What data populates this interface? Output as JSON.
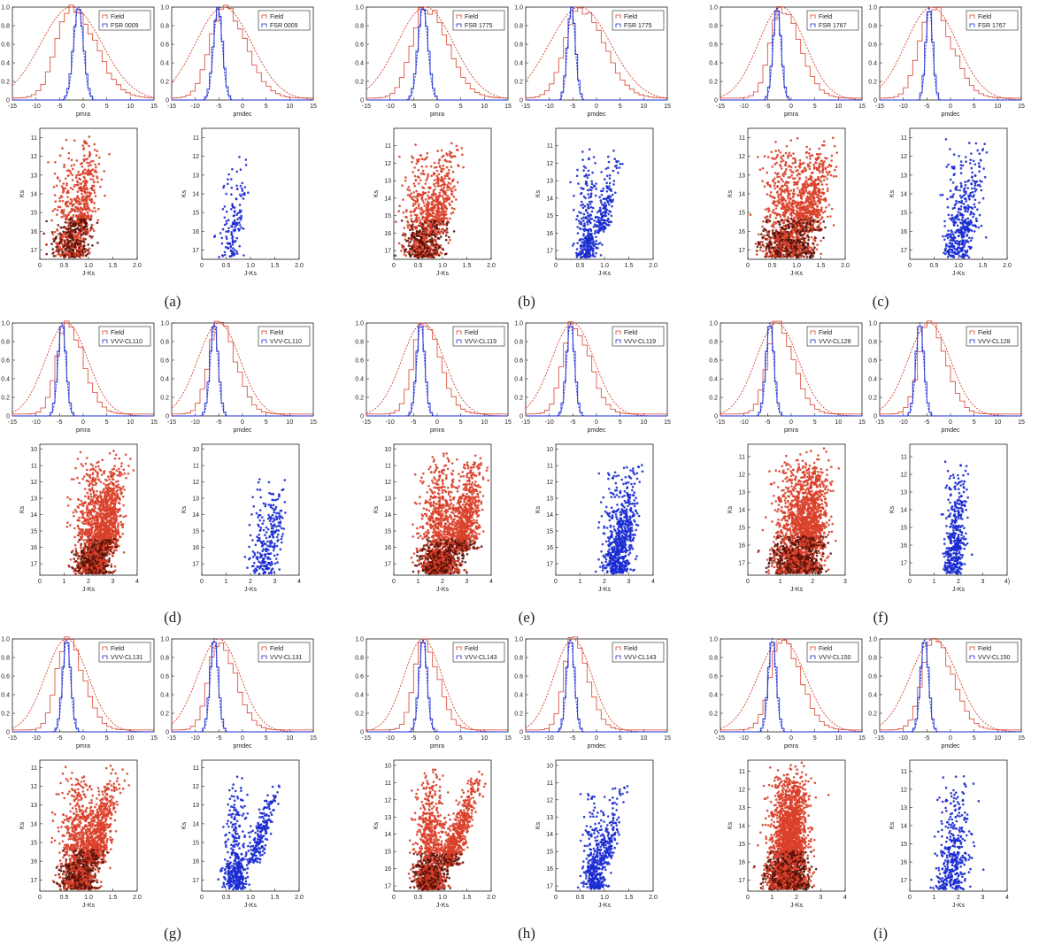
{
  "colors": {
    "field": "#d9402a",
    "cluster": "#1a2bd0",
    "axis": "#222222"
  },
  "chart_data": [
    {
      "label": "(a)",
      "type": "histogram-and-scatter",
      "legend_field": "Field",
      "legend_cluster": "FSR 0009",
      "hist_xlim": [
        -15,
        15
      ],
      "hist_ylim": [
        0,
        1.0
      ],
      "hist_xlabel_ra": "pmra",
      "hist_xlabel_dec": "pmdec",
      "field_ra_center": -2.5,
      "field_ra_sigma": 6.5,
      "field_dec_center": -4.0,
      "field_dec_sigma": 6.0,
      "cluster_ra_center": -1.0,
      "cluster_ra_sigma": 1.0,
      "cluster_dec_center": -5.2,
      "cluster_dec_sigma": 0.9,
      "cmd_xlim": [
        0,
        2.0
      ],
      "cmd_xticks": [
        "0",
        "0.5",
        "1.0",
        "1.5",
        "2.0"
      ],
      "cmd_ylim": [
        17.5,
        10.5
      ],
      "cmd_yticks": [
        "11",
        "12",
        "13",
        "14",
        "15",
        "16",
        "17"
      ],
      "cmd_xlabel": "J-Ks",
      "cmd_ylabel": "Ks",
      "field_cmd": {
        "rgb_color": 0.85,
        "rgb_slope": 0.06,
        "ms_color": 0.65,
        "spread": 0.18,
        "bright": 10.8,
        "n": 900
      },
      "cluster_cmd": {
        "rgb_color": 0.75,
        "rgb_slope": 0.05,
        "ms_color": 0.6,
        "spread": 0.1,
        "bright": 11.0,
        "n": 140
      }
    },
    {
      "label": "(b)",
      "type": "histogram-and-scatter",
      "legend_field": "Field",
      "legend_cluster": "FSR 1775",
      "hist_xlim": [
        -15,
        15
      ],
      "hist_ylim": [
        0,
        1.0
      ],
      "hist_xlabel_ra": "pmra",
      "hist_xlabel_dec": "pmdec",
      "field_ra_center": -2.5,
      "field_ra_sigma": 6.0,
      "field_dec_center": -3.5,
      "field_dec_sigma": 6.5,
      "cluster_ra_center": -3.0,
      "cluster_ra_sigma": 1.0,
      "cluster_dec_center": -5.3,
      "cluster_dec_sigma": 0.8,
      "cmd_xlim": [
        0,
        2.0
      ],
      "cmd_xticks": [
        "0",
        "0.5",
        "1.0",
        "1.5",
        "2.0"
      ],
      "cmd_ylim": [
        17.5,
        10.0
      ],
      "cmd_yticks": [
        "11",
        "12",
        "13",
        "14",
        "15",
        "16",
        "17"
      ],
      "cmd_xlabel": "J-Ks",
      "cmd_ylabel": "Ks",
      "field_cmd": {
        "rgb_color": 0.85,
        "rgb_slope": 0.07,
        "ms_color": 0.6,
        "spread": 0.2,
        "bright": 10.5,
        "n": 1100
      },
      "cluster_cmd": {
        "rgb_color": 0.95,
        "rgb_slope": 0.08,
        "ms_color": 0.65,
        "spread": 0.12,
        "bright": 10.4,
        "n": 450
      }
    },
    {
      "label": "(c)",
      "type": "histogram-and-scatter",
      "legend_field": "Field",
      "legend_cluster": "FSR 1767",
      "hist_xlim": [
        -15,
        15
      ],
      "hist_ylim": [
        0,
        1.0
      ],
      "hist_xlabel_ra": "pmra",
      "hist_xlabel_dec": "pmdec",
      "field_ra_center": -2.0,
      "field_ra_sigma": 5.0,
      "field_dec_center": -4.0,
      "field_dec_sigma": 5.5,
      "cluster_ra_center": -3.0,
      "cluster_ra_sigma": 0.8,
      "cluster_dec_center": -4.5,
      "cluster_dec_sigma": 0.7,
      "cmd_xlim": [
        0,
        2.0
      ],
      "cmd_xticks": [
        "0",
        "0.5",
        "1.0",
        "1.5",
        "2.0"
      ],
      "cmd_ylim": [
        17.5,
        10.5
      ],
      "cmd_yticks": [
        "11",
        "12",
        "13",
        "14",
        "15",
        "16",
        "17"
      ],
      "cmd_xlabel": "J-Ks",
      "cmd_ylabel": "Ks",
      "field_cmd": {
        "rgb_color": 1.2,
        "rgb_slope": 0.08,
        "ms_color": 0.8,
        "spread": 0.25,
        "bright": 10.8,
        "n": 1600
      },
      "cluster_cmd": {
        "rgb_color": 1.2,
        "rgb_slope": 0.06,
        "ms_color": 1.0,
        "spread": 0.15,
        "bright": 10.8,
        "n": 420
      }
    },
    {
      "label": "(d)",
      "type": "histogram-and-scatter",
      "legend_field": "Field",
      "legend_cluster": "VVV-CL110",
      "hist_xlim": [
        -15,
        15
      ],
      "hist_ylim": [
        0,
        1.0
      ],
      "hist_xlabel_ra": "pmra",
      "hist_xlabel_dec": "pmdec",
      "field_ra_center": -3.5,
      "field_ra_sigma": 4.5,
      "field_dec_center": -5.0,
      "field_dec_sigma": 4.5,
      "cluster_ra_center": -4.5,
      "cluster_ra_sigma": 0.8,
      "cluster_dec_center": -6.0,
      "cluster_dec_sigma": 0.8,
      "cmd_xlim": [
        0,
        4
      ],
      "cmd_xticks": [
        "0",
        "1",
        "2",
        "3",
        "4"
      ],
      "cmd_ylim": [
        17.7,
        9.7
      ],
      "cmd_yticks": [
        "10",
        "11",
        "12",
        "13",
        "14",
        "15",
        "16",
        "17"
      ],
      "cmd_xlabel": "J-Ks",
      "cmd_ylabel": "Ks",
      "field_cmd": {
        "rgb_color": 2.7,
        "rgb_slope": 0.1,
        "ms_color": 2.2,
        "spread": 0.35,
        "bright": 10.0,
        "n": 1900
      },
      "cluster_cmd": {
        "rgb_color": 2.9,
        "rgb_slope": 0.08,
        "ms_color": 2.5,
        "spread": 0.3,
        "bright": 10.9,
        "n": 260
      }
    },
    {
      "label": "(e)",
      "type": "histogram-and-scatter",
      "legend_field": "Field",
      "legend_cluster": "VVV-CL119",
      "hist_xlim": [
        -15,
        15
      ],
      "hist_ylim": [
        0,
        1.0
      ],
      "hist_xlabel_ra": "pmra",
      "hist_xlabel_dec": "pmdec",
      "field_ra_center": -3.0,
      "field_ra_sigma": 4.5,
      "field_dec_center": -5.0,
      "field_dec_sigma": 4.5,
      "cluster_ra_center": -3.5,
      "cluster_ra_sigma": 0.8,
      "cluster_dec_center": -5.5,
      "cluster_dec_sigma": 0.8,
      "cmd_xlim": [
        0,
        4
      ],
      "cmd_xticks": [
        "0",
        "1",
        "2",
        "3",
        "4"
      ],
      "cmd_ylim": [
        17.7,
        9.7
      ],
      "cmd_yticks": [
        "10",
        "11",
        "12",
        "13",
        "14",
        "15",
        "16",
        "17"
      ],
      "cmd_xlabel": "J-Ks",
      "cmd_ylabel": "Ks",
      "field_cmd": {
        "rgb_color": 2.8,
        "rgb_slope": 0.1,
        "ms_color": 1.9,
        "spread": 0.4,
        "bright": 10.0,
        "n": 2000
      },
      "cluster_cmd": {
        "rgb_color": 2.8,
        "rgb_slope": 0.08,
        "ms_color": 2.5,
        "spread": 0.3,
        "bright": 10.3,
        "n": 650
      }
    },
    {
      "label": "(f)",
      "type": "histogram-and-scatter",
      "legend_field": "Field",
      "legend_cluster": "VVV-CL128",
      "hist_xlim": [
        -15,
        15
      ],
      "hist_ylim": [
        0,
        1.0
      ],
      "hist_xlabel_ra": "pmra",
      "hist_xlabel_dec": "pmdec",
      "field_ra_center": -3.0,
      "field_ra_sigma": 4.5,
      "field_dec_center": -4.5,
      "field_dec_sigma": 4.5,
      "cluster_ra_center": -4.5,
      "cluster_ra_sigma": 0.8,
      "cluster_dec_center": -6.5,
      "cluster_dec_sigma": 0.8,
      "cmd_xlim": [
        0,
        3
      ],
      "cmd_xticks": [
        "0",
        "1",
        "2",
        "3"
      ],
      "cmd_xlim_cluster": [
        0,
        4
      ],
      "cmd_xticks_cluster": [
        "0",
        "1",
        "2",
        "3",
        "4)"
      ],
      "cmd_ylim": [
        17.7,
        10.3
      ],
      "cmd_yticks": [
        "11",
        "12",
        "13",
        "14",
        "15",
        "16",
        "17"
      ],
      "cmd_xlabel": "J-Ks",
      "cmd_ylabel": "Ks",
      "field_cmd": {
        "rgb_color": 1.9,
        "rgb_slope": 0.05,
        "ms_color": 1.5,
        "spread": 0.35,
        "bright": 10.5,
        "n": 2200
      },
      "cluster_cmd": {
        "rgb_color": 2.0,
        "rgb_slope": 0.05,
        "ms_color": 1.8,
        "spread": 0.2,
        "bright": 11.0,
        "n": 400
      }
    },
    {
      "label": "(g)",
      "type": "histogram-and-scatter",
      "legend_field": "Field",
      "legend_cluster": "VVV-CL131",
      "hist_xlim": [
        -15,
        15
      ],
      "hist_ylim": [
        0,
        1.0
      ],
      "hist_xlabel_ra": "pmra",
      "hist_xlabel_dec": "pmdec",
      "field_ra_center": -3.5,
      "field_ra_sigma": 4.5,
      "field_dec_center": -5.0,
      "field_dec_sigma": 4.5,
      "cluster_ra_center": -3.5,
      "cluster_ra_sigma": 0.8,
      "cluster_dec_center": -6.0,
      "cluster_dec_sigma": 0.8,
      "cmd_xlim": [
        0,
        2.0
      ],
      "cmd_xticks": [
        "0",
        "0.5",
        "1.0",
        "1.5",
        "2.0"
      ],
      "cmd_ylim": [
        17.6,
        10.6
      ],
      "cmd_yticks": [
        "11",
        "12",
        "13",
        "14",
        "15",
        "16",
        "17"
      ],
      "cmd_xlabel": "J-Ks",
      "cmd_ylabel": "Ks",
      "field_cmd": {
        "rgb_color": 1.1,
        "rgb_slope": 0.1,
        "ms_color": 0.8,
        "spread": 0.18,
        "bright": 10.8,
        "n": 1800
      },
      "cluster_cmd": {
        "rgb_color": 1.1,
        "rgb_slope": 0.11,
        "ms_color": 0.7,
        "spread": 0.12,
        "bright": 11.0,
        "n": 600
      }
    },
    {
      "label": "(h)",
      "type": "histogram-and-scatter",
      "legend_field": "Field",
      "legend_cluster": "VVV-CL143",
      "hist_xlim": [
        -15,
        15
      ],
      "hist_ylim": [
        0,
        1.0
      ],
      "hist_xlabel_ra": "pmra",
      "hist_xlabel_dec": "pmdec",
      "field_ra_center": -3.0,
      "field_ra_sigma": 4.0,
      "field_dec_center": -5.0,
      "field_dec_sigma": 4.0,
      "cluster_ra_center": -3.0,
      "cluster_ra_sigma": 0.8,
      "cluster_dec_center": -5.5,
      "cluster_dec_sigma": 0.8,
      "cmd_xlim": [
        0,
        2.0
      ],
      "cmd_xticks": [
        "0",
        "0.5",
        "1.0",
        "1.5",
        "2.0"
      ],
      "cmd_xlim_cluster": [
        0,
        2.0
      ],
      "cmd_xticks_cluster": [
        "0",
        "0.5",
        "1.0",
        "1.5",
        "2.0"
      ],
      "cmd_ylim": [
        17.3,
        9.7
      ],
      "cmd_yticks": [
        "10",
        "11",
        "12",
        "13",
        "14",
        "15",
        "16",
        "17"
      ],
      "cmd_xlabel": "J-Ks",
      "cmd_ylabel": "Ks",
      "field_cmd": {
        "rgb_color": 1.15,
        "rgb_slope": 0.12,
        "ms_color": 0.75,
        "spread": 0.15,
        "bright": 10.0,
        "n": 1800
      },
      "cluster_cmd": {
        "rgb_color": 1.0,
        "rgb_slope": 0.08,
        "ms_color": 0.8,
        "spread": 0.12,
        "bright": 10.6,
        "n": 500
      }
    },
    {
      "label": "(i)",
      "type": "histogram-and-scatter",
      "legend_field": "Field",
      "legend_cluster": "VVV-CL150",
      "hist_xlim": [
        -15,
        15
      ],
      "hist_ylim": [
        0,
        1.0
      ],
      "hist_xlabel_ra": "pmra",
      "hist_xlabel_dec": "pmdec",
      "field_ra_center": -2.0,
      "field_ra_sigma": 5.0,
      "field_dec_center": -3.5,
      "field_dec_sigma": 5.0,
      "cluster_ra_center": -4.0,
      "cluster_ra_sigma": 0.8,
      "cluster_dec_center": -5.5,
      "cluster_dec_sigma": 0.8,
      "cmd_xlim": [
        0,
        4
      ],
      "cmd_xticks": [
        "0",
        "1",
        "2",
        "3",
        "4"
      ],
      "cmd_ylim": [
        17.6,
        10.4
      ],
      "cmd_yticks": [
        "11",
        "12",
        "13",
        "14",
        "15",
        "16",
        "17"
      ],
      "cmd_xlabel": "J-Ks",
      "cmd_ylabel": "Ks",
      "field_cmd": {
        "rgb_color": 1.8,
        "rgb_slope": 0.04,
        "ms_color": 1.6,
        "spread": 0.4,
        "bright": 10.5,
        "n": 2600
      },
      "cluster_cmd": {
        "rgb_color": 1.9,
        "rgb_slope": 0.05,
        "ms_color": 1.7,
        "spread": 0.35,
        "bright": 10.8,
        "n": 380
      }
    }
  ]
}
